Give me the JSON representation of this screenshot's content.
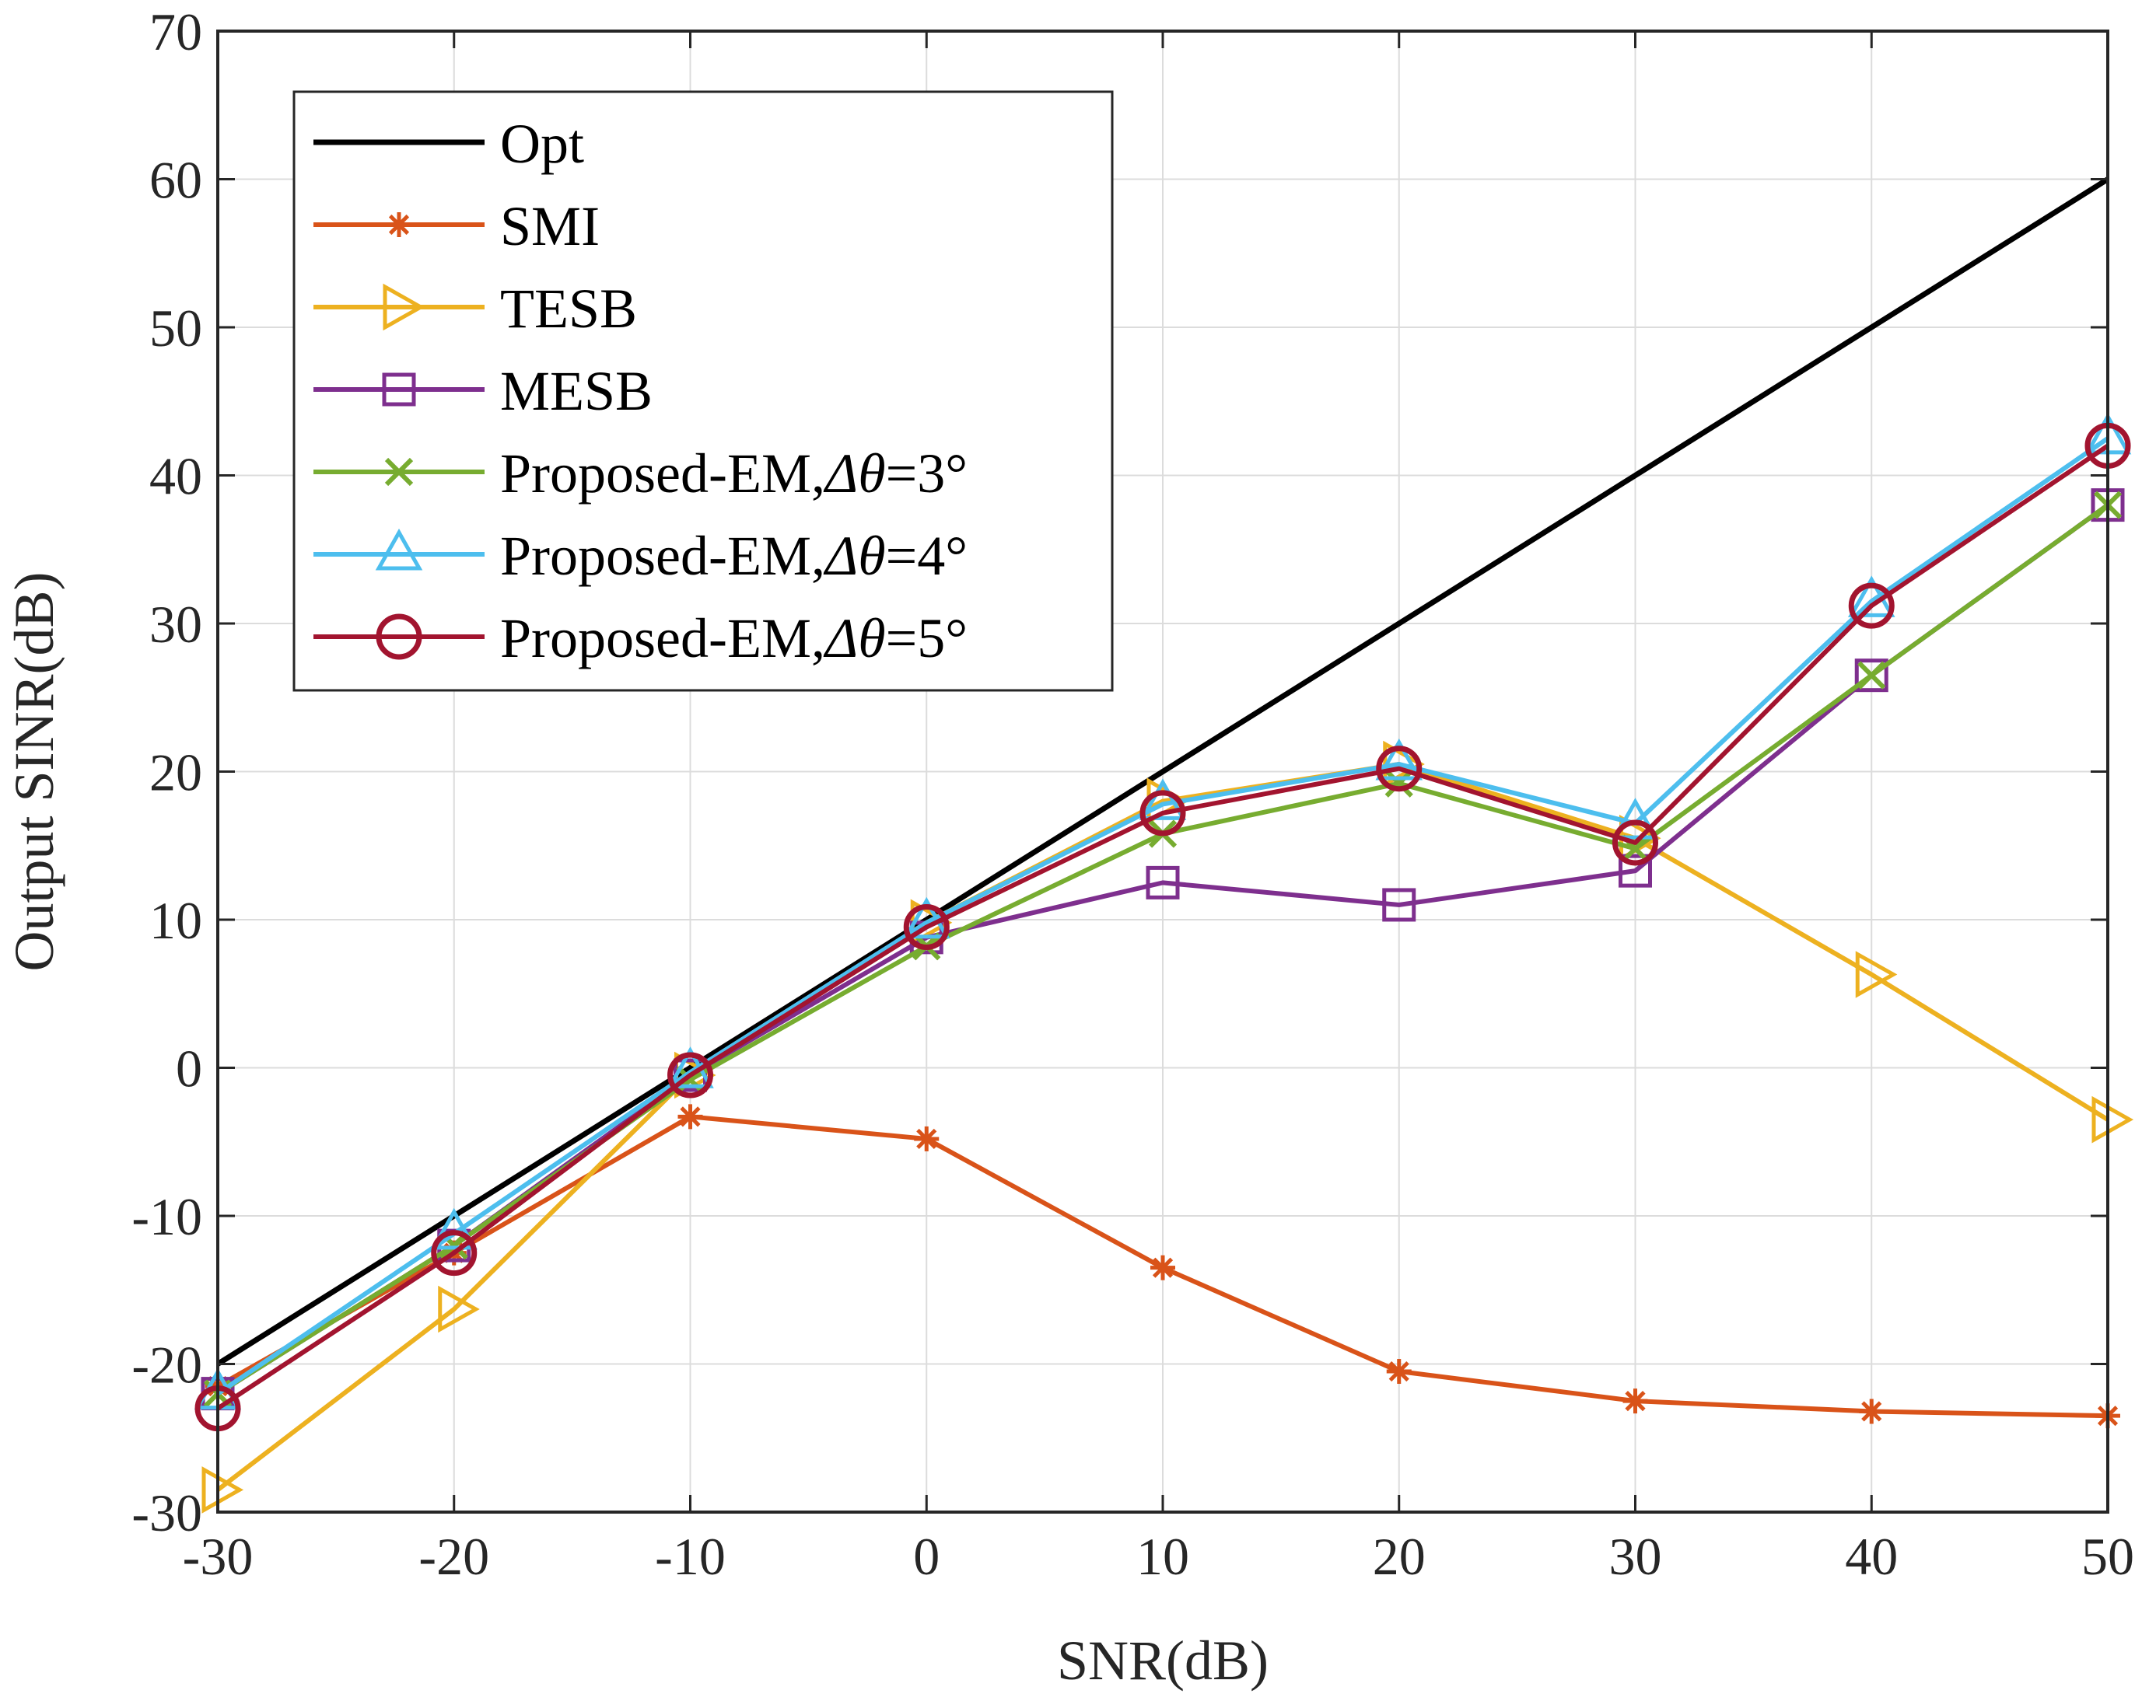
{
  "chart_data": {
    "type": "line",
    "title": "",
    "xlabel": "SNR(dB)",
    "ylabel": "Output SINR(dB)",
    "xlim": [
      -30,
      50
    ],
    "ylim": [
      -30,
      70
    ],
    "grid": true,
    "legend_position": "top-left",
    "x": [
      -30,
      -20,
      -10,
      0,
      10,
      20,
      30,
      40,
      50
    ],
    "x_ticks": [
      "-30",
      "-20",
      "-10",
      "0",
      "10",
      "20",
      "30",
      "40",
      "50"
    ],
    "y_ticks": [
      "-30",
      "-20",
      "-10",
      "0",
      "10",
      "20",
      "30",
      "40",
      "50",
      "60",
      "70"
    ],
    "series": [
      {
        "name": "Opt",
        "color": "#000000",
        "marker": "none",
        "values": [
          -20,
          -10,
          0,
          10,
          20,
          30,
          40,
          50,
          60
        ]
      },
      {
        "name": "SMI",
        "color": "#D95319",
        "marker": "asterisk",
        "values": [
          -21.5,
          -12.5,
          -3.3,
          -4.8,
          -13.5,
          -20.5,
          -22.5,
          -23.2,
          -23.5
        ]
      },
      {
        "name": "TESB",
        "color": "#EDB120",
        "marker": "triangle-right",
        "values": [
          -28.5,
          -16.3,
          -0.5,
          9.8,
          18.0,
          20.5,
          15.5,
          6.3,
          -3.5
        ]
      },
      {
        "name": "MESB",
        "color": "#7E2F8E",
        "marker": "square",
        "values": [
          -22.0,
          -12.0,
          -0.5,
          8.8,
          12.5,
          11.0,
          13.3,
          26.5,
          38.0
        ]
      },
      {
        "name": "Proposed-EM,",
        "greek": "Δθ",
        "angle_suffix": "=3°",
        "color": "#77AC30",
        "marker": "x",
        "values": [
          -22.0,
          -12.0,
          -0.8,
          8.2,
          15.8,
          19.2,
          14.8,
          26.5,
          38.0
        ]
      },
      {
        "name": "Proposed-EM,",
        "greek": "Δθ",
        "angle_suffix": "=4°",
        "color": "#4DBEEE",
        "marker": "triangle-up",
        "values": [
          -22.0,
          -11.2,
          -0.3,
          9.8,
          17.8,
          20.5,
          16.5,
          31.5,
          42.5
        ]
      },
      {
        "name": "Proposed-EM,",
        "greek": "Δθ",
        "angle_suffix": "=5°",
        "color": "#A2142F",
        "marker": "circle",
        "values": [
          -23.0,
          -12.5,
          -0.5,
          9.5,
          17.2,
          20.2,
          15.2,
          31.2,
          42.0
        ]
      }
    ]
  }
}
